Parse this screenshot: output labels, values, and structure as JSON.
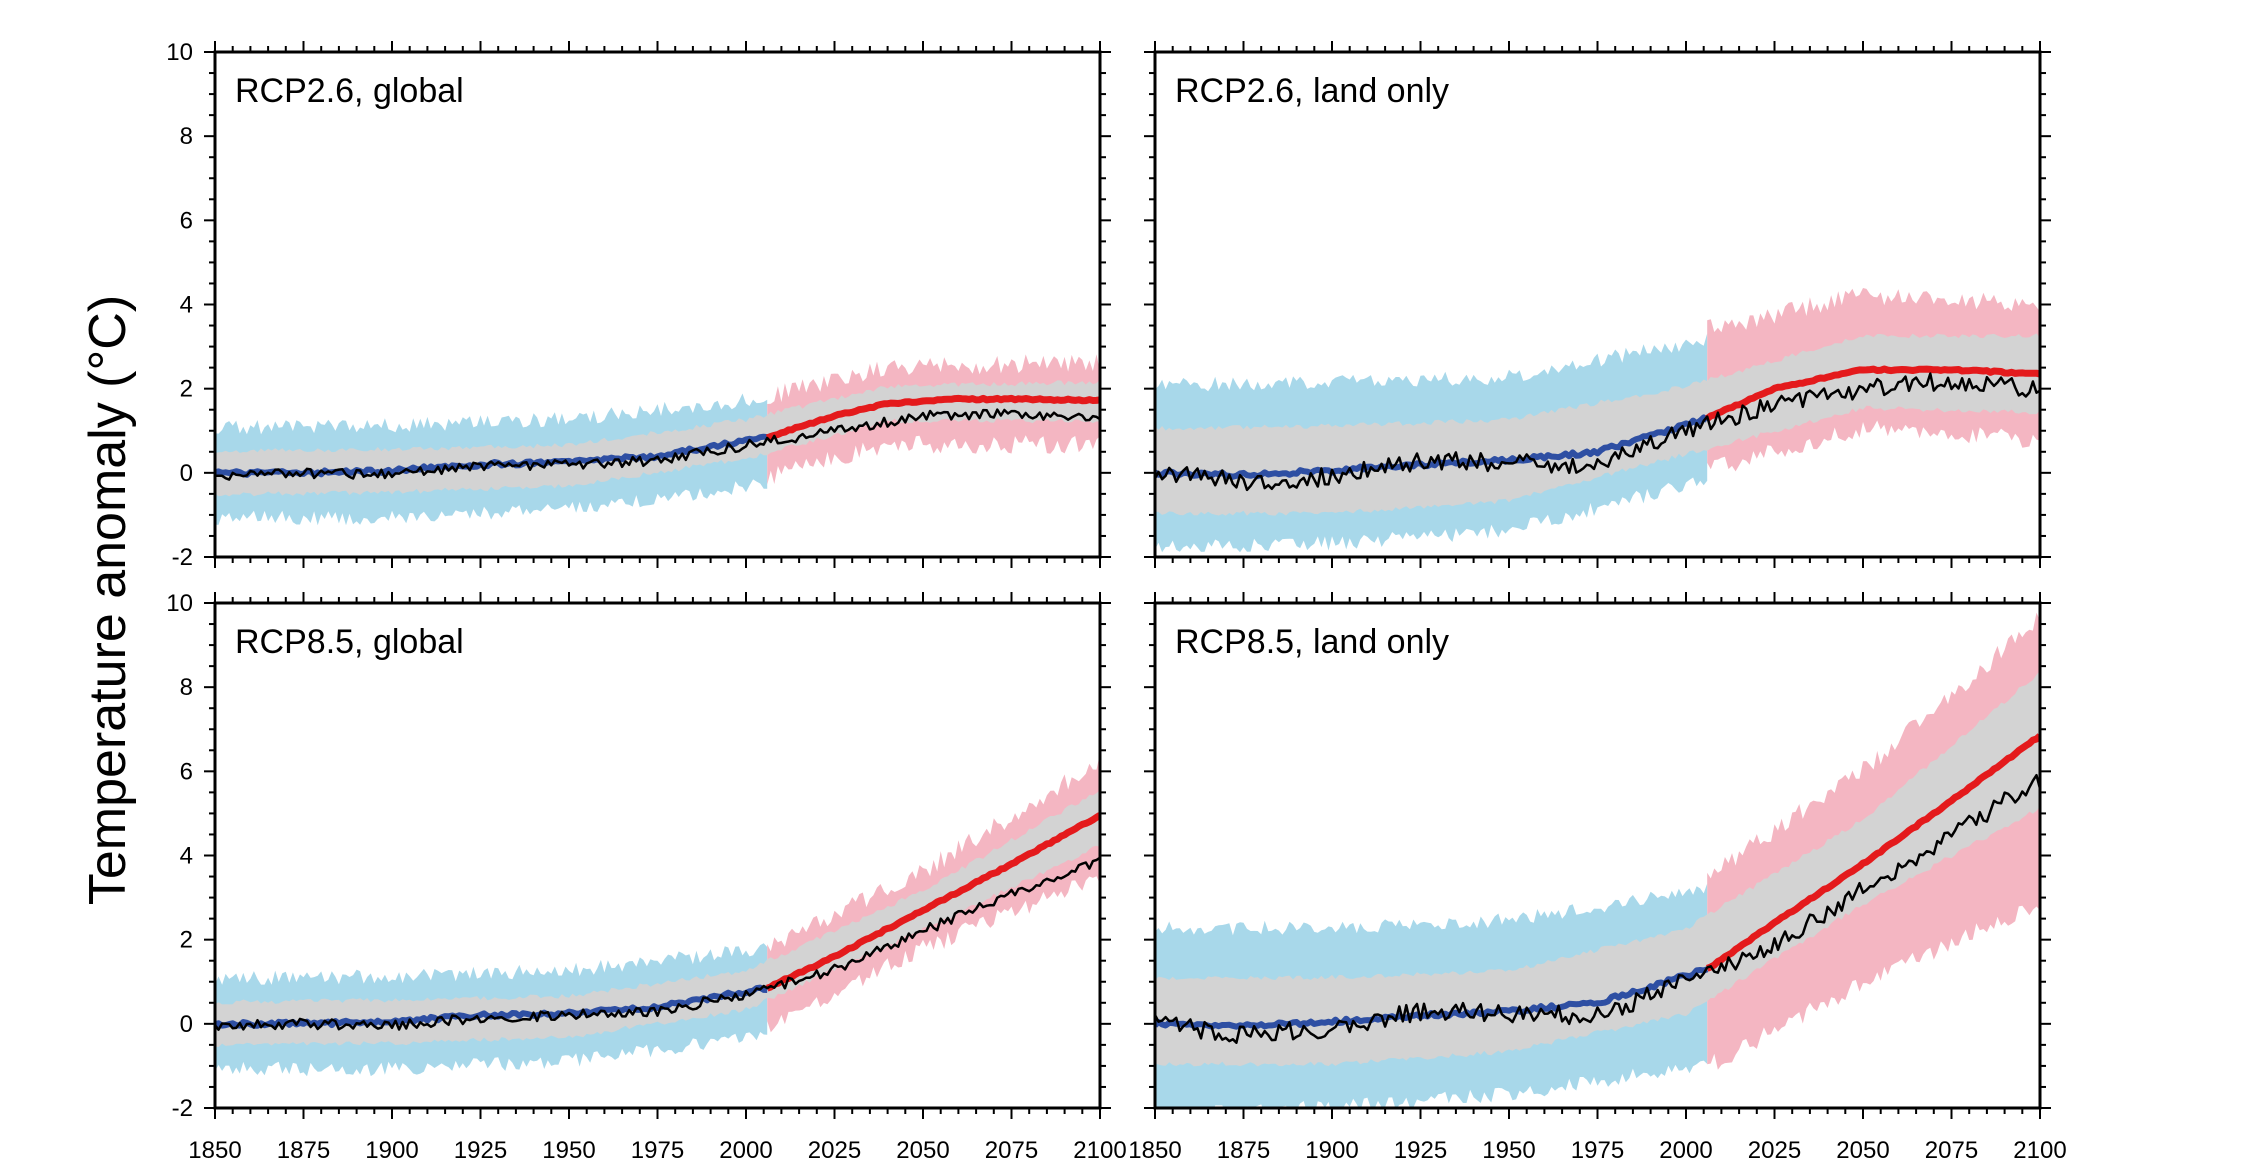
{
  "chart_data": {
    "type": "line",
    "ylabel": "Temperature anomaly (°C)",
    "xlim": [
      1850,
      2100
    ],
    "ylim": [
      -2,
      10
    ],
    "x_ticks": [
      1850,
      1875,
      1900,
      1925,
      1950,
      1975,
      2000,
      2025,
      2050,
      2075,
      2100
    ],
    "y_ticks": [
      -2,
      0,
      2,
      4,
      6,
      8,
      10
    ],
    "colors": {
      "historical_mean": "#2e4fa3",
      "historical_spread_outer": "#a8d8ea",
      "projection_mean": "#e41a1c",
      "projection_spread_outer": "#f4b6c2",
      "spread_inner": "#d3d3d3",
      "single_run": "#000000"
    },
    "panels": [
      {
        "title": "RCP2.6, global",
        "position": "top-left",
        "series": [
          {
            "role": "historical_mean",
            "x": [
              1850,
              1875,
              1900,
              1925,
              1950,
              1975,
              2006
            ],
            "y": [
              0,
              0,
              0.05,
              0.2,
              0.25,
              0.4,
              0.85
            ]
          },
          {
            "role": "projection_mean",
            "x": [
              2006,
              2025,
              2040,
              2060,
              2080,
              2100
            ],
            "y": [
              0.85,
              1.35,
              1.65,
              1.75,
              1.75,
              1.72
            ]
          },
          {
            "role": "single_run",
            "x": [
              1850,
              1875,
              1900,
              1925,
              1950,
              1975,
              2000,
              2025,
              2050,
              2075,
              2100
            ],
            "y": [
              -0.05,
              0,
              -0.05,
              0.15,
              0.2,
              0.3,
              0.65,
              1.0,
              1.35,
              1.4,
              1.3
            ]
          },
          {
            "role": "historical_spread_outer",
            "x": [
              1850,
              1900,
              1950,
              2006
            ],
            "upper": [
              0.9,
              0.95,
              1.1,
              1.6
            ],
            "lower": [
              -0.9,
              -0.9,
              -0.7,
              -0.1
            ]
          },
          {
            "role": "projection_spread_outer",
            "x": [
              2006,
              2040,
              2100
            ],
            "upper": [
              1.6,
              2.3,
              2.4
            ],
            "lower": [
              0.1,
              0.9,
              0.9
            ]
          },
          {
            "role": "spread_inner",
            "x": [
              1850,
              1900,
              1950,
              2000,
              2040,
              2100
            ],
            "upper": [
              0.45,
              0.5,
              0.6,
              1.2,
              2.0,
              2.1
            ],
            "lower": [
              -0.45,
              -0.4,
              -0.25,
              0.4,
              1.3,
              1.3
            ]
          }
        ]
      },
      {
        "title": "RCP2.6, land only",
        "position": "top-right",
        "series": [
          {
            "role": "historical_mean",
            "x": [
              1850,
              1875,
              1900,
              1925,
              1950,
              1975,
              2006
            ],
            "y": [
              0,
              -0.05,
              0.05,
              0.2,
              0.3,
              0.5,
              1.3
            ]
          },
          {
            "role": "projection_mean",
            "x": [
              2006,
              2025,
              2050,
              2075,
              2100
            ],
            "y": [
              1.3,
              2.0,
              2.45,
              2.45,
              2.35
            ]
          },
          {
            "role": "single_run",
            "x": [
              1850,
              1875,
              1900,
              1925,
              1950,
              1975,
              2000,
              2025,
              2050,
              2075,
              2100
            ],
            "y": [
              0,
              -0.2,
              -0.1,
              0.3,
              0.25,
              0.2,
              1.0,
              1.6,
              2.0,
              2.2,
              2.0
            ]
          },
          {
            "role": "historical_spread_outer",
            "x": [
              1850,
              1900,
              1950,
              2006
            ],
            "upper": [
              1.9,
              2.0,
              2.1,
              3.0
            ],
            "lower": [
              -1.6,
              -1.5,
              -1.2,
              0.0
            ]
          },
          {
            "role": "projection_spread_outer",
            "x": [
              2006,
              2050,
              2100
            ],
            "upper": [
              3.2,
              4.0,
              3.8
            ],
            "lower": [
              0.3,
              1.3,
              1.0
            ]
          },
          {
            "role": "spread_inner",
            "x": [
              1850,
              1900,
              1950,
              2000,
              2050,
              2100
            ],
            "upper": [
              1.0,
              1.05,
              1.2,
              2.0,
              3.2,
              3.2
            ],
            "lower": [
              -0.9,
              -0.9,
              -0.6,
              0.5,
              1.6,
              1.5
            ]
          }
        ]
      },
      {
        "title": "RCP8.5, global",
        "position": "bottom-left",
        "series": [
          {
            "role": "historical_mean",
            "x": [
              1850,
              1875,
              1900,
              1925,
              1950,
              1975,
              2006
            ],
            "y": [
              0,
              0,
              0.05,
              0.2,
              0.25,
              0.4,
              0.85
            ]
          },
          {
            "role": "projection_mean",
            "x": [
              2006,
              2025,
              2050,
              2075,
              2100
            ],
            "y": [
              0.85,
              1.6,
              2.7,
              3.8,
              4.95
            ]
          },
          {
            "role": "single_run",
            "x": [
              1850,
              1875,
              1900,
              1925,
              1950,
              1975,
              2000,
              2025,
              2050,
              2075,
              2100
            ],
            "y": [
              -0.05,
              0,
              -0.05,
              0.15,
              0.2,
              0.3,
              0.7,
              1.3,
              2.2,
              3.1,
              3.9
            ]
          },
          {
            "role": "historical_spread_outer",
            "x": [
              1850,
              1900,
              1950,
              2006
            ],
            "upper": [
              0.9,
              0.95,
              1.1,
              1.6
            ],
            "lower": [
              -0.9,
              -0.9,
              -0.7,
              -0.1
            ]
          },
          {
            "role": "projection_spread_outer",
            "x": [
              2006,
              2050,
              2100
            ],
            "upper": [
              1.6,
              3.4,
              6.0
            ],
            "lower": [
              0.2,
              2.0,
              3.7
            ]
          },
          {
            "role": "spread_inner",
            "x": [
              1850,
              1900,
              1950,
              2000,
              2050,
              2100
            ],
            "upper": [
              0.45,
              0.5,
              0.6,
              1.2,
              3.1,
              5.5
            ],
            "lower": [
              -0.45,
              -0.4,
              -0.25,
              0.4,
              2.3,
              4.3
            ]
          }
        ]
      },
      {
        "title": "RCP8.5, land only",
        "position": "bottom-right",
        "series": [
          {
            "role": "historical_mean",
            "x": [
              1850,
              1875,
              1900,
              1925,
              1950,
              1975,
              2006
            ],
            "y": [
              0,
              -0.05,
              0.05,
              0.2,
              0.3,
              0.5,
              1.3
            ]
          },
          {
            "role": "projection_mean",
            "x": [
              2006,
              2025,
              2050,
              2075,
              2100
            ],
            "y": [
              1.3,
              2.4,
              3.8,
              5.3,
              6.85
            ]
          },
          {
            "role": "single_run",
            "x": [
              1850,
              1875,
              1900,
              1925,
              1950,
              1975,
              2000,
              2025,
              2050,
              2075,
              2100
            ],
            "y": [
              0,
              -0.25,
              -0.1,
              0.3,
              0.25,
              0.2,
              1.0,
              1.9,
              3.2,
              4.5,
              5.8
            ]
          },
          {
            "role": "historical_spread_outer",
            "x": [
              1850,
              1900,
              1950,
              2006
            ],
            "upper": [
              2.1,
              2.1,
              2.3,
              3.0
            ],
            "lower": [
              -2.0,
              -1.8,
              -1.5,
              -0.8
            ]
          },
          {
            "role": "projection_spread_outer",
            "x": [
              2006,
              2050,
              2100
            ],
            "upper": [
              3.3,
              5.8,
              9.4
            ],
            "lower": [
              -0.8,
              1.2,
              3.1
            ]
          },
          {
            "role": "spread_inner",
            "x": [
              1850,
              1900,
              1950,
              2000,
              2050,
              2100
            ],
            "upper": [
              1.0,
              1.05,
              1.2,
              2.2,
              4.8,
              8.3
            ],
            "lower": [
              -0.9,
              -0.9,
              -0.6,
              0.3,
              2.9,
              5.2
            ]
          }
        ]
      }
    ]
  }
}
